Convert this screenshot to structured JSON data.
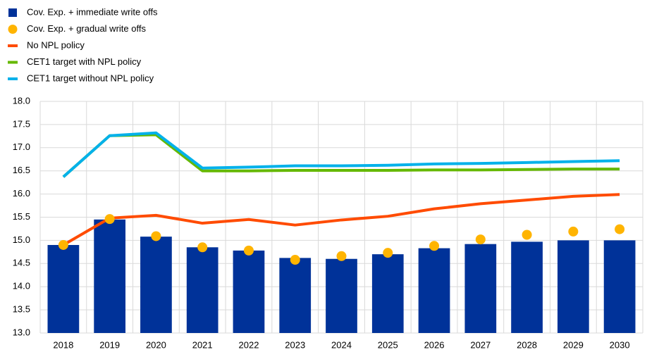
{
  "chart_data": {
    "type": "combo",
    "categories": [
      "2018",
      "2019",
      "2020",
      "2021",
      "2022",
      "2023",
      "2024",
      "2025",
      "2026",
      "2027",
      "2028",
      "2029",
      "2030"
    ],
    "series": [
      {
        "name": "Cov. Exp. + immediate write offs",
        "type": "bar",
        "color": "#003299",
        "values": [
          14.9,
          15.45,
          15.08,
          14.85,
          14.78,
          14.62,
          14.6,
          14.7,
          14.83,
          14.92,
          14.97,
          15.0,
          15.0
        ]
      },
      {
        "name": "Cov. Exp. + gradual write offs",
        "type": "scatter",
        "color": "#ffb400",
        "values": [
          14.9,
          15.46,
          15.09,
          14.85,
          14.78,
          14.58,
          14.66,
          14.73,
          14.88,
          15.02,
          15.12,
          15.19,
          15.24
        ]
      },
      {
        "name": "No NPL policy",
        "type": "line",
        "color": "#ff4b00",
        "values": [
          14.9,
          15.48,
          15.54,
          15.37,
          15.45,
          15.33,
          15.44,
          15.52,
          15.68,
          15.79,
          15.87,
          15.95,
          15.99
        ]
      },
      {
        "name": "CET1 target with NPL policy",
        "type": "line",
        "color": "#65b800",
        "values": [
          16.37,
          17.26,
          17.28,
          16.5,
          16.5,
          16.51,
          16.51,
          16.51,
          16.52,
          16.52,
          16.53,
          16.54,
          16.54
        ]
      },
      {
        "name": "CET1 target without NPL policy",
        "type": "line",
        "color": "#00b1ea",
        "values": [
          16.37,
          17.26,
          17.32,
          16.56,
          16.58,
          16.61,
          16.61,
          16.62,
          16.65,
          16.66,
          16.68,
          16.7,
          16.72
        ]
      }
    ],
    "ylim": [
      13,
      18
    ],
    "yticks": [
      {
        "value": 13,
        "label": "13.0"
      },
      13.5,
      {
        "value": 14,
        "label": "14.0"
      },
      14.5,
      {
        "value": 15,
        "label": "15.0"
      },
      15.5,
      {
        "value": 16,
        "label": "16.0"
      },
      16.5,
      {
        "value": 17,
        "label": "17.0"
      },
      17.5,
      {
        "value": 18,
        "label": "18.0"
      }
    ],
    "grid": true
  }
}
